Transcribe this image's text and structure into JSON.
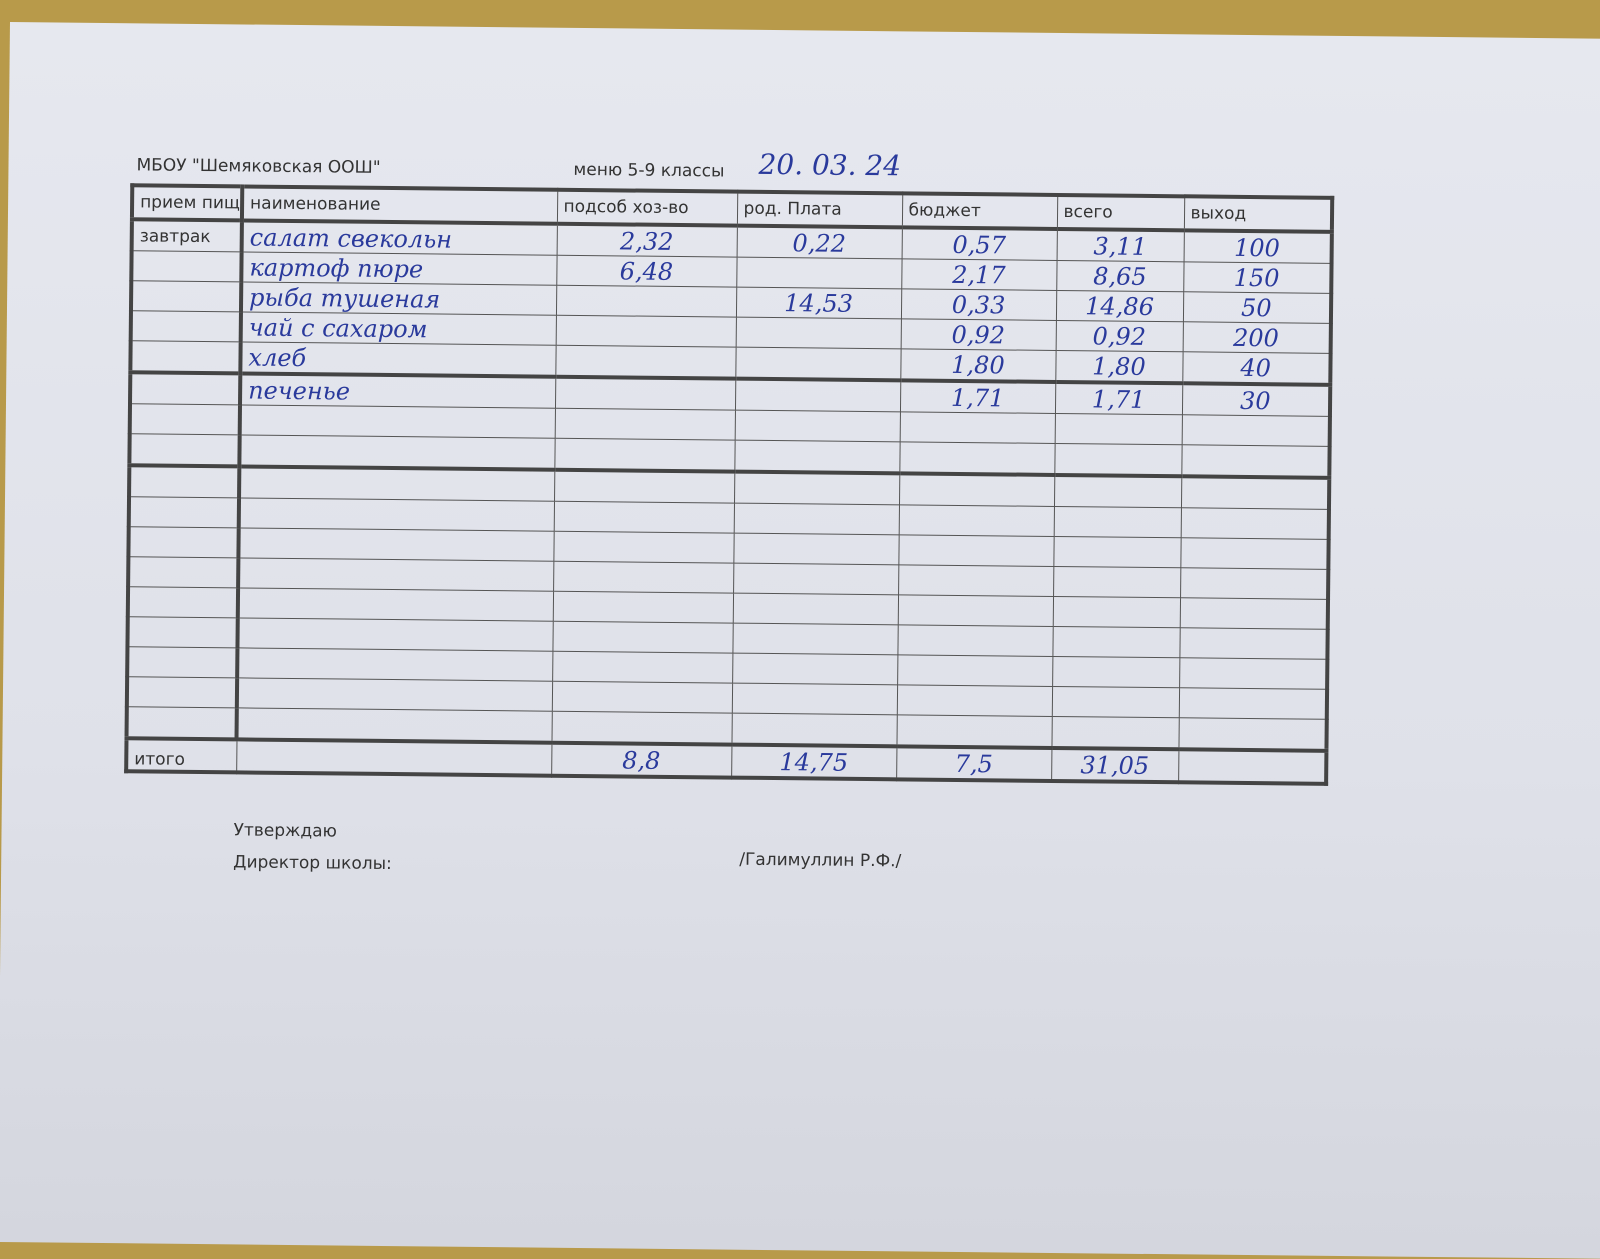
{
  "header": {
    "school": "МБОУ \"Шемяковская ООШ\"",
    "menu": "меню 5-9 классы",
    "date": "20. 03. 24"
  },
  "columns": [
    "прием пищ",
    "наименование",
    "подсоб хоз-во",
    "род. Плата",
    "бюджет",
    "всего",
    "выход"
  ],
  "meal": "завтрак",
  "rows": [
    {
      "name": "салат свекольн",
      "podsob": "2,32",
      "rod": "0,22",
      "budget": "0,57",
      "total": "3,11",
      "yield": "100"
    },
    {
      "name": "картоф пюре",
      "podsob": "6,48",
      "rod": "",
      "budget": "2,17",
      "total": "8,65",
      "yield": "150"
    },
    {
      "name": "рыба тушеная",
      "podsob": "",
      "rod": "14,53",
      "budget": "0,33",
      "total": "14,86",
      "yield": "50"
    },
    {
      "name": "чай с сахаром",
      "podsob": "",
      "rod": "",
      "budget": "0,92",
      "total": "0,92",
      "yield": "200"
    },
    {
      "name": "хлеб",
      "podsob": "",
      "rod": "",
      "budget": "1,80",
      "total": "1,80",
      "yield": "40"
    },
    {
      "name": "печенье",
      "podsob": "",
      "rod": "",
      "budget": "1,71",
      "total": "1,71",
      "yield": "30"
    }
  ],
  "totals": {
    "label": "итого",
    "podsob": "8,8",
    "rod": "14,75",
    "budget": "7,5",
    "total": "31,05"
  },
  "footer": {
    "approve": "Утверждаю",
    "director": "Директор школы:",
    "name": "/Галимуллин Р.Ф./"
  }
}
